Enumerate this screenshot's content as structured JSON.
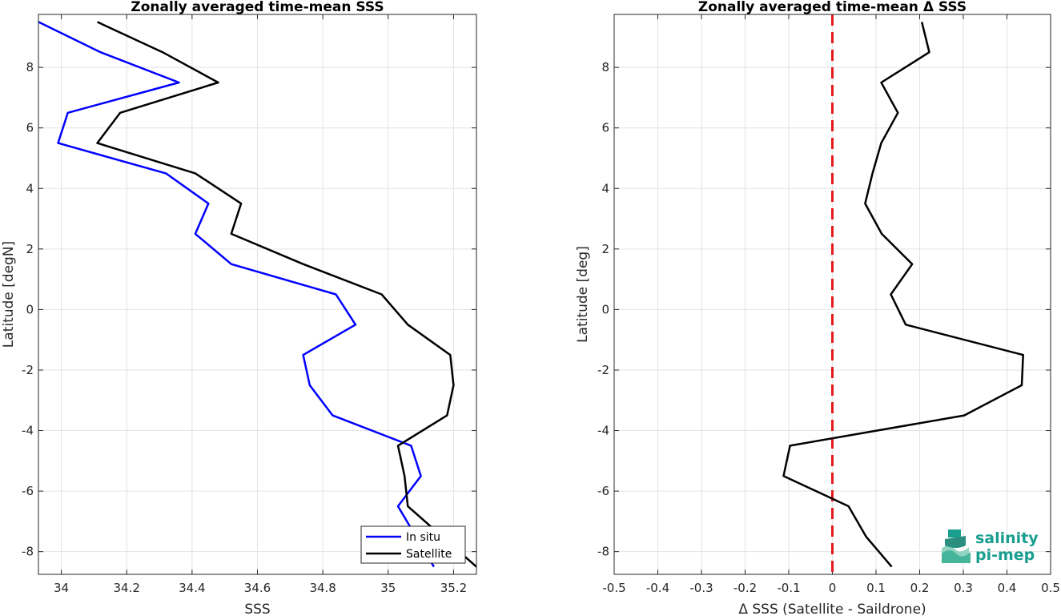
{
  "chart_data": [
    {
      "type": "line",
      "title": "Zonally averaged time-mean SSS",
      "xlabel": "SSS",
      "ylabel": "Latitude [degN]",
      "xlim": [
        33.93,
        35.27
      ],
      "ylim": [
        -8.75,
        9.75
      ],
      "xticks": [
        34,
        34.2,
        34.4,
        34.6,
        34.8,
        35,
        35.2
      ],
      "xticklabels": [
        "34",
        "34.2",
        "34.4",
        "34.6",
        "34.8",
        "35",
        "35.2"
      ],
      "yticks": [
        -8,
        -6,
        -4,
        -2,
        0,
        2,
        4,
        6,
        8
      ],
      "yticklabels": [
        "-8",
        "-6",
        "-4",
        "-2",
        "0",
        "2",
        "4",
        "6",
        "8"
      ],
      "grid": true,
      "legend": "bottom-right",
      "series": [
        {
          "name": "In situ",
          "color": "#0000ff",
          "x": [
            33.93,
            34.12,
            34.36,
            34.02,
            33.99,
            34.32,
            34.45,
            34.41,
            34.52,
            34.84,
            34.9,
            34.74,
            34.76,
            34.83,
            35.07,
            35.1,
            35.03,
            35.14
          ],
          "y": [
            9.5,
            8.5,
            7.5,
            6.5,
            5.5,
            4.5,
            3.5,
            2.5,
            1.5,
            0.5,
            -0.5,
            -1.5,
            -2.5,
            -3.5,
            -4.5,
            -5.5,
            -6.5,
            -8.5
          ]
        },
        {
          "name": "Satellite",
          "color": "#000000",
          "x": [
            34.11,
            34.31,
            34.48,
            34.18,
            34.11,
            34.41,
            34.55,
            34.52,
            34.74,
            34.98,
            35.06,
            35.19,
            35.2,
            35.18,
            35.03,
            35.05,
            35.06,
            35.27
          ],
          "y": [
            9.5,
            8.5,
            7.5,
            6.5,
            5.5,
            4.5,
            3.5,
            2.5,
            1.5,
            0.5,
            -0.5,
            -1.5,
            -2.5,
            -3.5,
            -4.5,
            -5.5,
            -6.5,
            -8.5
          ]
        }
      ]
    },
    {
      "type": "line",
      "title": "Zonally averaged time-mean Δ SSS",
      "xlabel": "Δ SSS (Satellite - Saildrone)",
      "ylabel": "Latitude [deg]",
      "xlim": [
        -0.5,
        0.5
      ],
      "ylim": [
        -8.75,
        9.75
      ],
      "xticks": [
        -0.5,
        -0.4,
        -0.3,
        -0.2,
        -0.1,
        0,
        0.1,
        0.2,
        0.3,
        0.4,
        0.5
      ],
      "xticklabels": [
        "-0.5",
        "-0.4",
        "-0.3",
        "-0.2",
        "-0.1",
        "0",
        "0.1",
        "0.2",
        "0.3",
        "0.4",
        "0.5"
      ],
      "yticks": [
        -8,
        -6,
        -4,
        -2,
        0,
        2,
        4,
        6,
        8
      ],
      "yticklabels": [
        "-8",
        "-6",
        "-4",
        "-2",
        "0",
        "2",
        "4",
        "6",
        "8"
      ],
      "grid": true,
      "reference_line": {
        "x": 0,
        "color": "#e41a1c",
        "style": "dashed"
      },
      "series": [
        {
          "color": "#000000",
          "x": [
            0.205,
            0.222,
            0.112,
            0.15,
            0.112,
            0.092,
            0.075,
            0.113,
            0.183,
            0.134,
            0.168,
            0.437,
            0.434,
            0.302,
            -0.097,
            -0.112,
            0.037,
            0.077,
            0.136
          ],
          "y": [
            9.5,
            8.5,
            7.5,
            6.5,
            5.5,
            4.5,
            3.5,
            2.5,
            1.5,
            0.5,
            -0.5,
            -1.5,
            -2.5,
            -3.5,
            -4.5,
            -5.5,
            -6.5,
            -7.5,
            -8.5
          ]
        }
      ]
    }
  ],
  "logo": {
    "line1": "salinity",
    "line2": "pi-mep"
  }
}
